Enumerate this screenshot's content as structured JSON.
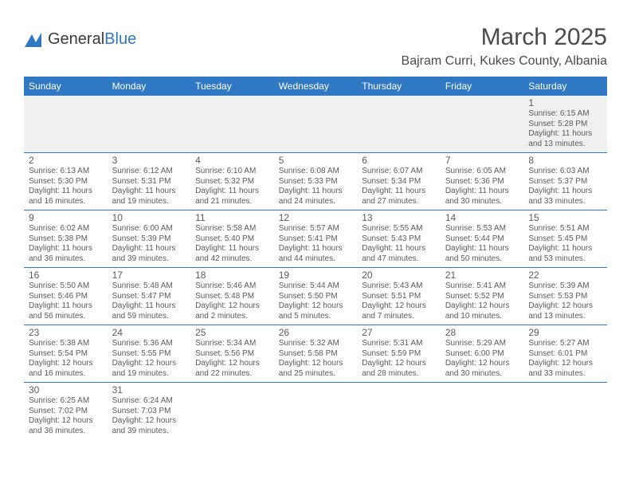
{
  "logo": {
    "brand_a": "General",
    "brand_b": "Blue"
  },
  "title": "March 2025",
  "location": "Bajram Curri, Kukes County, Albania",
  "colors": {
    "header_bg": "#2f78c4",
    "header_fg": "#ffffff",
    "divider": "#2f78c4",
    "text": "#4a4a4a",
    "alt_row_bg": "#f0f0f0"
  },
  "weekdays": [
    "Sunday",
    "Monday",
    "Tuesday",
    "Wednesday",
    "Thursday",
    "Friday",
    "Saturday"
  ],
  "weeks": [
    [
      null,
      null,
      null,
      null,
      null,
      null,
      {
        "n": "1",
        "sr": "Sunrise: 6:15 AM",
        "ss": "Sunset: 5:28 PM",
        "dl1": "Daylight: 11 hours",
        "dl2": "and 13 minutes."
      }
    ],
    [
      {
        "n": "2",
        "sr": "Sunrise: 6:13 AM",
        "ss": "Sunset: 5:30 PM",
        "dl1": "Daylight: 11 hours",
        "dl2": "and 16 minutes."
      },
      {
        "n": "3",
        "sr": "Sunrise: 6:12 AM",
        "ss": "Sunset: 5:31 PM",
        "dl1": "Daylight: 11 hours",
        "dl2": "and 19 minutes."
      },
      {
        "n": "4",
        "sr": "Sunrise: 6:10 AM",
        "ss": "Sunset: 5:32 PM",
        "dl1": "Daylight: 11 hours",
        "dl2": "and 21 minutes."
      },
      {
        "n": "5",
        "sr": "Sunrise: 6:08 AM",
        "ss": "Sunset: 5:33 PM",
        "dl1": "Daylight: 11 hours",
        "dl2": "and 24 minutes."
      },
      {
        "n": "6",
        "sr": "Sunrise: 6:07 AM",
        "ss": "Sunset: 5:34 PM",
        "dl1": "Daylight: 11 hours",
        "dl2": "and 27 minutes."
      },
      {
        "n": "7",
        "sr": "Sunrise: 6:05 AM",
        "ss": "Sunset: 5:36 PM",
        "dl1": "Daylight: 11 hours",
        "dl2": "and 30 minutes."
      },
      {
        "n": "8",
        "sr": "Sunrise: 6:03 AM",
        "ss": "Sunset: 5:37 PM",
        "dl1": "Daylight: 11 hours",
        "dl2": "and 33 minutes."
      }
    ],
    [
      {
        "n": "9",
        "sr": "Sunrise: 6:02 AM",
        "ss": "Sunset: 5:38 PM",
        "dl1": "Daylight: 11 hours",
        "dl2": "and 36 minutes."
      },
      {
        "n": "10",
        "sr": "Sunrise: 6:00 AM",
        "ss": "Sunset: 5:39 PM",
        "dl1": "Daylight: 11 hours",
        "dl2": "and 39 minutes."
      },
      {
        "n": "11",
        "sr": "Sunrise: 5:58 AM",
        "ss": "Sunset: 5:40 PM",
        "dl1": "Daylight: 11 hours",
        "dl2": "and 42 minutes."
      },
      {
        "n": "12",
        "sr": "Sunrise: 5:57 AM",
        "ss": "Sunset: 5:41 PM",
        "dl1": "Daylight: 11 hours",
        "dl2": "and 44 minutes."
      },
      {
        "n": "13",
        "sr": "Sunrise: 5:55 AM",
        "ss": "Sunset: 5:43 PM",
        "dl1": "Daylight: 11 hours",
        "dl2": "and 47 minutes."
      },
      {
        "n": "14",
        "sr": "Sunrise: 5:53 AM",
        "ss": "Sunset: 5:44 PM",
        "dl1": "Daylight: 11 hours",
        "dl2": "and 50 minutes."
      },
      {
        "n": "15",
        "sr": "Sunrise: 5:51 AM",
        "ss": "Sunset: 5:45 PM",
        "dl1": "Daylight: 11 hours",
        "dl2": "and 53 minutes."
      }
    ],
    [
      {
        "n": "16",
        "sr": "Sunrise: 5:50 AM",
        "ss": "Sunset: 5:46 PM",
        "dl1": "Daylight: 11 hours",
        "dl2": "and 56 minutes."
      },
      {
        "n": "17",
        "sr": "Sunrise: 5:48 AM",
        "ss": "Sunset: 5:47 PM",
        "dl1": "Daylight: 11 hours",
        "dl2": "and 59 minutes."
      },
      {
        "n": "18",
        "sr": "Sunrise: 5:46 AM",
        "ss": "Sunset: 5:48 PM",
        "dl1": "Daylight: 12 hours",
        "dl2": "and 2 minutes."
      },
      {
        "n": "19",
        "sr": "Sunrise: 5:44 AM",
        "ss": "Sunset: 5:50 PM",
        "dl1": "Daylight: 12 hours",
        "dl2": "and 5 minutes."
      },
      {
        "n": "20",
        "sr": "Sunrise: 5:43 AM",
        "ss": "Sunset: 5:51 PM",
        "dl1": "Daylight: 12 hours",
        "dl2": "and 7 minutes."
      },
      {
        "n": "21",
        "sr": "Sunrise: 5:41 AM",
        "ss": "Sunset: 5:52 PM",
        "dl1": "Daylight: 12 hours",
        "dl2": "and 10 minutes."
      },
      {
        "n": "22",
        "sr": "Sunrise: 5:39 AM",
        "ss": "Sunset: 5:53 PM",
        "dl1": "Daylight: 12 hours",
        "dl2": "and 13 minutes."
      }
    ],
    [
      {
        "n": "23",
        "sr": "Sunrise: 5:38 AM",
        "ss": "Sunset: 5:54 PM",
        "dl1": "Daylight: 12 hours",
        "dl2": "and 16 minutes."
      },
      {
        "n": "24",
        "sr": "Sunrise: 5:36 AM",
        "ss": "Sunset: 5:55 PM",
        "dl1": "Daylight: 12 hours",
        "dl2": "and 19 minutes."
      },
      {
        "n": "25",
        "sr": "Sunrise: 5:34 AM",
        "ss": "Sunset: 5:56 PM",
        "dl1": "Daylight: 12 hours",
        "dl2": "and 22 minutes."
      },
      {
        "n": "26",
        "sr": "Sunrise: 5:32 AM",
        "ss": "Sunset: 5:58 PM",
        "dl1": "Daylight: 12 hours",
        "dl2": "and 25 minutes."
      },
      {
        "n": "27",
        "sr": "Sunrise: 5:31 AM",
        "ss": "Sunset: 5:59 PM",
        "dl1": "Daylight: 12 hours",
        "dl2": "and 28 minutes."
      },
      {
        "n": "28",
        "sr": "Sunrise: 5:29 AM",
        "ss": "Sunset: 6:00 PM",
        "dl1": "Daylight: 12 hours",
        "dl2": "and 30 minutes."
      },
      {
        "n": "29",
        "sr": "Sunrise: 5:27 AM",
        "ss": "Sunset: 6:01 PM",
        "dl1": "Daylight: 12 hours",
        "dl2": "and 33 minutes."
      }
    ],
    [
      {
        "n": "30",
        "sr": "Sunrise: 6:25 AM",
        "ss": "Sunset: 7:02 PM",
        "dl1": "Daylight: 12 hours",
        "dl2": "and 36 minutes."
      },
      {
        "n": "31",
        "sr": "Sunrise: 6:24 AM",
        "ss": "Sunset: 7:03 PM",
        "dl1": "Daylight: 12 hours",
        "dl2": "and 39 minutes."
      },
      null,
      null,
      null,
      null,
      null
    ]
  ]
}
